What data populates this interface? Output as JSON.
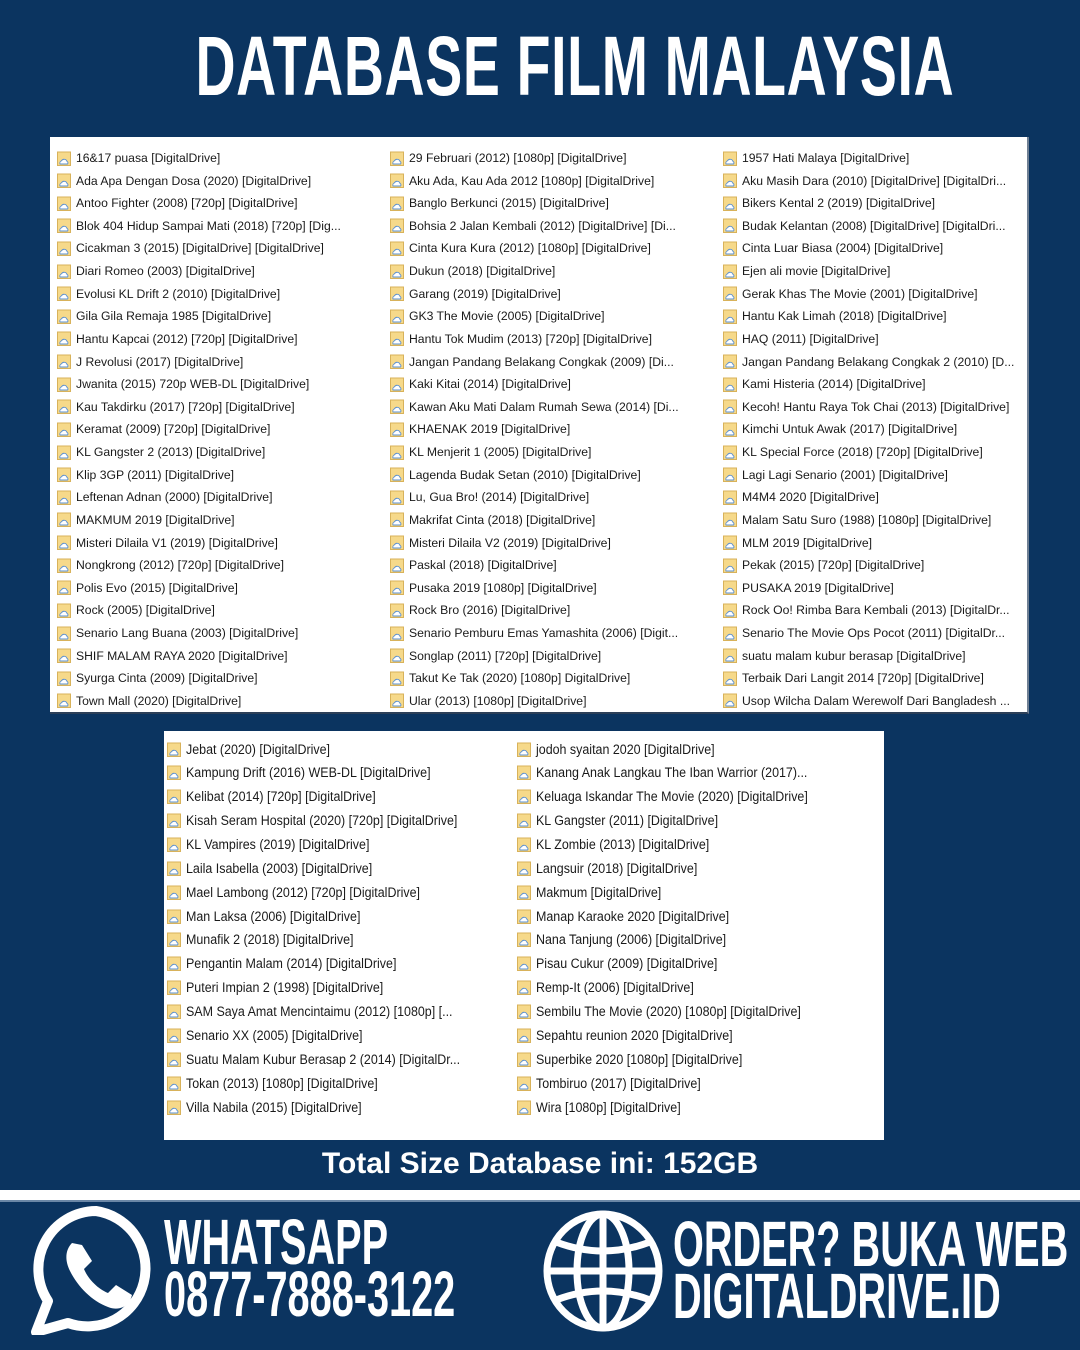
{
  "title": "DATABASE FILM MALAYSIA",
  "top_list": {
    "col1": [
      "16&17 puasa [DigitalDrive]",
      "Ada Apa Dengan Dosa (2020) [DigitalDrive]",
      "Antoo Fighter (2008) [720p] [DigitalDrive]",
      "Blok 404 Hidup Sampai Mati (2018) [720p] [Dig...",
      "Cicakman 3 (2015) [DigitalDrive] [DigitalDrive]",
      "Diari Romeo (2003) [DigitalDrive]",
      "Evolusi KL Drift 2 (2010) [DigitalDrive]",
      "Gila Gila Remaja 1985 [DigitalDrive]",
      "Hantu Kapcai (2012) [720p] [DigitalDrive]",
      "J Revolusi (2017) [DigitalDrive]",
      "Jwanita (2015) 720p WEB-DL [DigitalDrive]",
      "Kau Takdirku (2017) [720p] [DigitalDrive]",
      "Keramat (2009) [720p] [DigitalDrive]",
      "KL Gangster 2 (2013) [DigitalDrive]",
      "Klip 3GP (2011) [DigitalDrive]",
      "Leftenan Adnan (2000) [DigitalDrive]",
      "MAKMUM 2019 [DigitalDrive]",
      "Misteri Dilaila V1 (2019) [DigitalDrive]",
      "Nongkrong (2012) [720p] [DigitalDrive]",
      "Polis Evo (2015) [DigitalDrive]",
      "Rock (2005) [DigitalDrive]",
      "Senario Lang Buana (2003) [DigitalDrive]",
      "SHIF MALAM RAYA 2020 [DigitalDrive]",
      "Syurga Cinta (2009) [DigitalDrive]",
      "Town Mall (2020) [DigitalDrive]"
    ],
    "col2": [
      "29 Februari (2012) [1080p] [DigitalDrive]",
      "Aku Ada, Kau Ada 2012 [1080p] [DigitalDrive]",
      "Banglo Berkunci (2015) [DigitalDrive]",
      "Bohsia 2  Jalan Kembali (2012) [DigitalDrive] [Di...",
      "Cinta Kura Kura (2012) [1080p] [DigitalDrive]",
      "Dukun (2018) [DigitalDrive]",
      "Garang (2019) [DigitalDrive]",
      "GK3 The Movie (2005) [DigitalDrive]",
      "Hantu Tok Mudim (2013) [720p] [DigitalDrive]",
      "Jangan Pandang Belakang Congkak (2009) [Di...",
      "Kaki Kitai (2014) [DigitalDrive]",
      "Kawan Aku Mati Dalam Rumah Sewa (2014) [Di...",
      "KHAENAK 2019 [DigitalDrive]",
      "KL Menjerit 1 (2005) [DigitalDrive]",
      "Lagenda Budak Setan (2010) [DigitalDrive]",
      "Lu, Gua Bro! (2014) [DigitalDrive]",
      "Makrifat Cinta (2018) [DigitalDrive]",
      "Misteri Dilaila V2 (2019) [DigitalDrive]",
      "Paskal (2018) [DigitalDrive]",
      "Pusaka 2019 [1080p] [DigitalDrive]",
      "Rock Bro (2016) [DigitalDrive]",
      "Senario Pemburu Emas Yamashita (2006) [Digit...",
      "Songlap (2011) [720p] [DigitalDrive]",
      "Takut Ke Tak (2020) [1080p] DigitalDrive]",
      "Ular (2013) [1080p] [DigitalDrive]"
    ],
    "col3": [
      "1957 Hati Malaya [DigitalDrive]",
      "Aku Masih Dara (2010) [DigitalDrive] [DigitalDri...",
      "Bikers Kental 2 (2019) [DigitalDrive]",
      "Budak Kelantan (2008) [DigitalDrive] [DigitalDri...",
      "Cinta Luar Biasa (2004) [DigitalDrive]",
      "Ejen ali movie [DigitalDrive]",
      "Gerak Khas The Movie (2001) [DigitalDrive]",
      "Hantu Kak Limah (2018) [DigitalDrive]",
      "HAQ (2011) [DigitalDrive]",
      "Jangan Pandang Belakang Congkak 2 (2010) [D...",
      "Kami Histeria (2014) [DigitalDrive]",
      "Kecoh! Hantu Raya Tok Chai (2013) [DigitalDrive]",
      "Kimchi Untuk Awak (2017) [DigitalDrive]",
      "KL Special Force (2018) [720p] [DigitalDrive]",
      "Lagi Lagi Senario (2001) [DigitalDrive]",
      "M4M4 2020 [DigitalDrive]",
      "Malam Satu Suro (1988) [1080p] [DigitalDrive]",
      "MLM 2019 [DigitalDrive]",
      "Pekak (2015) [720p] [DigitalDrive]",
      "PUSAKA 2019 [DigitalDrive]",
      "Rock Oo! Rimba Bara Kembali (2013) [DigitalDr...",
      "Senario The Movie  Ops Pocot (2011) [DigitalDr...",
      "suatu malam kubur berasap [DigitalDrive]",
      "Terbaik Dari Langit 2014 [720p] [DigitalDrive]",
      "Usop Wilcha Dalam Werewolf Dari Bangladesh ..."
    ]
  },
  "bottom_list": {
    "col1": [
      "Jebat (2020) [DigitalDrive]",
      "Kampung Drift (2016) WEB-DL [DigitalDrive]",
      "Kelibat (2014) [720p] [DigitalDrive]",
      "Kisah Seram Hospital (2020) [720p] [DigitalDrive]",
      "KL Vampires (2019) [DigitalDrive]",
      "Laila Isabella (2003) [DigitalDrive]",
      "Mael Lambong (2012) [720p] [DigitalDrive]",
      "Man Laksa (2006) [DigitalDrive]",
      "Munafik 2 (2018) [DigitalDrive]",
      "Pengantin Malam (2014) [DigitalDrive]",
      "Puteri Impian 2 (1998) [DigitalDrive]",
      "SAM Saya Amat Mencintaimu (2012) [1080p] [...",
      "Senario XX (2005) [DigitalDrive]",
      "Suatu Malam Kubur Berasap 2 (2014) [DigitalDr...",
      "Tokan (2013) [1080p] [DigitalDrive]",
      "Villa Nabila (2015) [DigitalDrive]"
    ],
    "col2": [
      "jodoh syaitan 2020 [DigitalDrive]",
      "Kanang Anak Langkau  The Iban Warrior (2017)...",
      "Keluaga Iskandar The Movie (2020) [DigitalDrive]",
      "KL Gangster (2011) [DigitalDrive]",
      "KL Zombie (2013) [DigitalDrive]",
      "Langsuir (2018) [DigitalDrive]",
      "Makmum [DigitalDrive]",
      "Manap Karaoke 2020 [DigitalDrive]",
      "Nana Tanjung (2006) [DigitalDrive]",
      "Pisau Cukur (2009) [DigitalDrive]",
      "Remp-It (2006) [DigitalDrive]",
      "Sembilu The Movie (2020) [1080p] [DigitalDrive]",
      "Sepahtu reunion 2020 [DigitalDrive]",
      "Superbike 2020 [1080p] [DigitalDrive]",
      "Tombiruo (2017) [DigitalDrive]",
      "Wira [1080p] [DigitalDrive]"
    ]
  },
  "total_size": "Total Size Database ini: 152GB",
  "footer": {
    "whatsapp_label": "WHATSAPP",
    "whatsapp_number": "0877-7888-3122",
    "order_label": "ORDER? BUKA WEB",
    "website": "DIGITALDRIVE.ID"
  },
  "icons": {
    "list_item": "cloud-folder-icon",
    "whatsapp": "whatsapp-icon",
    "web": "globe-icon"
  },
  "colors": {
    "background": "#0b3460",
    "panel": "#ffffff",
    "text": "#ffffff"
  }
}
